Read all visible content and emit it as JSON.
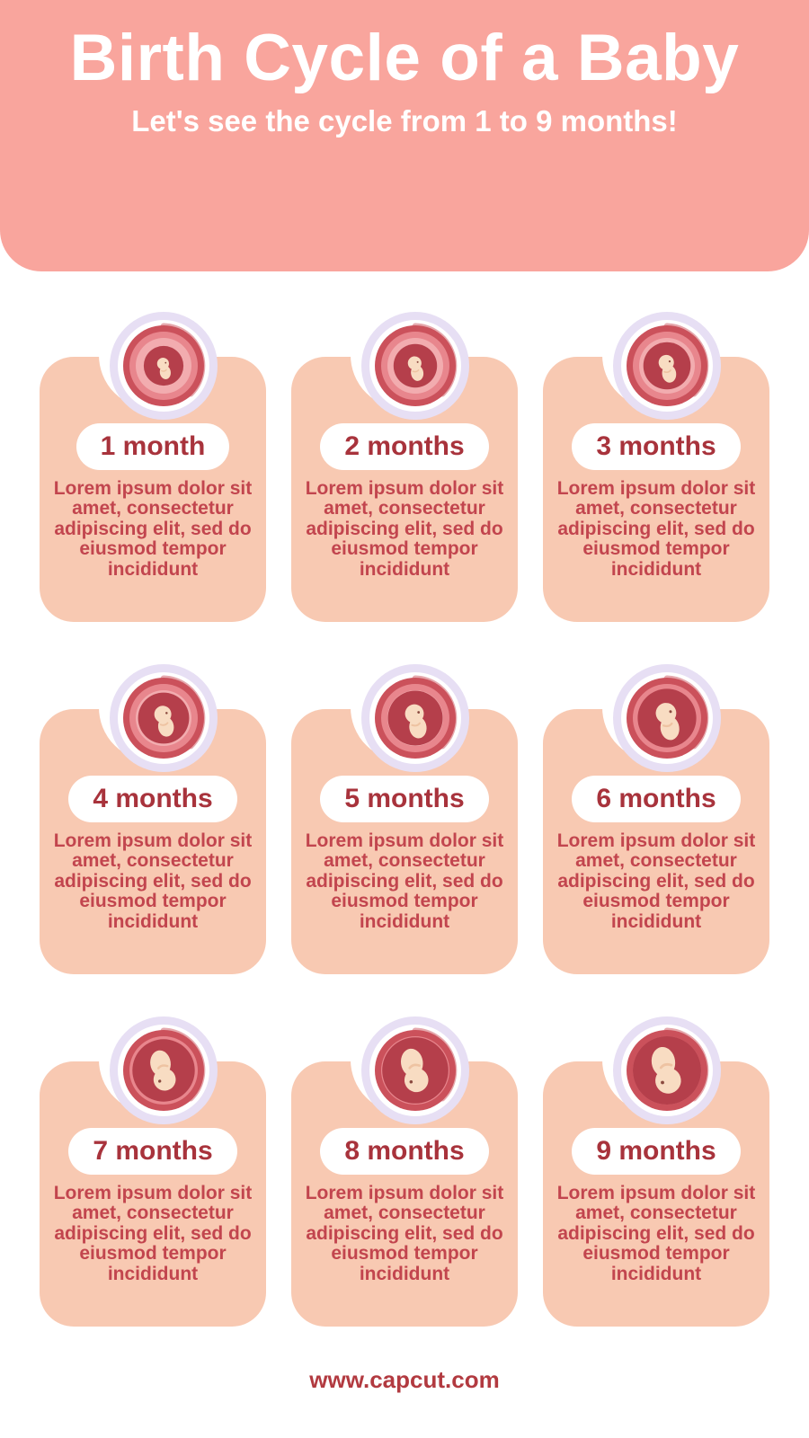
{
  "header": {
    "title": "Birth Cycle of a Baby",
    "subtitle": "Let's see the cycle from 1 to 9 months!"
  },
  "months": [
    {
      "label": "1 month",
      "stage": 1,
      "illustration": "embryo-in-womb-month-1",
      "description": "Lorem ipsum dolor sit amet, consectetur adipiscing elit, sed do eiusmod tempor incididunt"
    },
    {
      "label": "2 months",
      "stage": 2,
      "illustration": "fetus-in-womb-month-2",
      "description": "Lorem ipsum dolor sit amet, consectetur adipiscing elit, sed do eiusmod tempor incididunt"
    },
    {
      "label": "3 months",
      "stage": 3,
      "illustration": "fetus-in-womb-month-3",
      "description": "Lorem ipsum dolor sit amet, consectetur adipiscing elit, sed do eiusmod tempor incididunt"
    },
    {
      "label": "4 months",
      "stage": 4,
      "illustration": "fetus-in-womb-month-4",
      "description": "Lorem ipsum dolor sit amet, consectetur adipiscing elit, sed do eiusmod tempor incididunt"
    },
    {
      "label": "5 months",
      "stage": 5,
      "illustration": "fetus-in-womb-month-5",
      "description": "Lorem ipsum dolor sit amet, consectetur adipiscing elit, sed do eiusmod tempor incididunt"
    },
    {
      "label": "6 months",
      "stage": 6,
      "illustration": "fetus-in-womb-month-6",
      "description": "Lorem ipsum dolor sit amet, consectetur adipiscing elit, sed do eiusmod tempor incididunt"
    },
    {
      "label": "7 months",
      "stage": 7,
      "illustration": "fetus-in-womb-month-7",
      "description": "Lorem ipsum dolor sit amet, consectetur adipiscing elit, sed do eiusmod tempor incididunt"
    },
    {
      "label": "8 months",
      "stage": 8,
      "illustration": "fetus-in-womb-month-8",
      "description": "Lorem ipsum dolor sit amet, consectetur adipiscing elit, sed do eiusmod tempor incididunt"
    },
    {
      "label": "9 months",
      "stage": 9,
      "illustration": "fetus-in-womb-month-9",
      "description": "Lorem ipsum dolor sit amet, consectetur adipiscing elit, sed do eiusmod tempor incididunt"
    }
  ],
  "footer": {
    "website": "www.capcut.com"
  },
  "colors": {
    "header_bg": "#F9A59D",
    "card_bg": "#F8C9B2",
    "title_text": "#FFFFFF",
    "month_label_text": "#A8333C",
    "description_text": "#C2454E",
    "footer_text": "#B23A40",
    "womb": {
      "lavender": "#E7DFF4",
      "white_ring": "#FFFFFF",
      "ring": "#CB515B",
      "mid": "#E8868D",
      "light": "#F2ACAF",
      "inner": "#B53F4B",
      "skin": "#F8DCC2",
      "skin_shade": "#EEC3A2",
      "eye": "#8A4A3F"
    }
  }
}
